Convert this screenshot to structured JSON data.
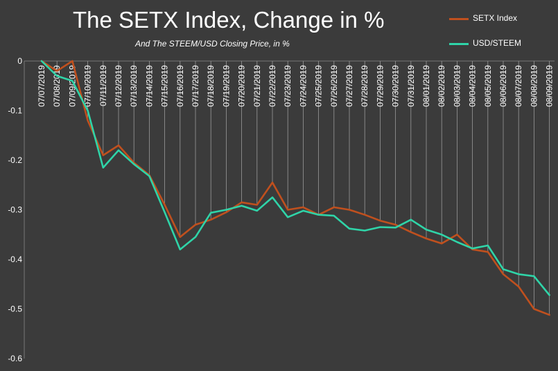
{
  "chart_data": {
    "type": "line",
    "title": "The SETX Index, Change in %",
    "subtitle": "And The STEEM/USD Closing Price, in %",
    "xlabel": "",
    "ylabel": "",
    "ylim": [
      -0.6,
      0
    ],
    "yticks": [
      "0",
      "-0.1",
      "-0.2",
      "-0.3",
      "-0.4",
      "-0.5",
      "-0.6"
    ],
    "grid": "vertical drop lines",
    "legend_position": "top-right",
    "categories": [
      "07/07/2019",
      "07/08/2019",
      "07/09/2019",
      "07/10/2019",
      "07/11/2019",
      "07/12/2019",
      "07/13/2019",
      "07/14/2019",
      "07/15/2019",
      "07/16/2019",
      "07/17/2019",
      "07/18/2019",
      "07/19/2019",
      "07/20/2019",
      "07/21/2019",
      "07/22/2019",
      "07/23/2019",
      "07/24/2019",
      "07/25/2019",
      "07/26/2019",
      "07/27/2019",
      "07/28/2019",
      "07/29/2019",
      "07/30/2019",
      "07/31/2019",
      "08/01/2019",
      "08/02/2019",
      "08/03/2019",
      "08/04/2019",
      "08/05/2019",
      "08/06/2019",
      "08/07/2019",
      "08/08/2019",
      "08/09/2019"
    ],
    "series": [
      {
        "name": "SETX Index",
        "color": "#c0501e",
        "values": [
          0,
          -0.02,
          0,
          -0.12,
          -0.19,
          -0.17,
          -0.205,
          -0.23,
          -0.29,
          -0.355,
          -0.33,
          -0.32,
          -0.305,
          -0.285,
          -0.29,
          -0.245,
          -0.3,
          -0.295,
          -0.31,
          -0.295,
          -0.3,
          -0.31,
          -0.322,
          -0.33,
          -0.345,
          -0.358,
          -0.368,
          -0.35,
          -0.38,
          -0.385,
          -0.43,
          -0.455,
          -0.5,
          -0.512
        ]
      },
      {
        "name": "USD/STEEM",
        "color": "#2fd4a8",
        "values": [
          0,
          -0.03,
          -0.04,
          -0.1,
          -0.215,
          -0.18,
          -0.208,
          -0.232,
          -0.305,
          -0.38,
          -0.355,
          -0.306,
          -0.3,
          -0.292,
          -0.302,
          -0.275,
          -0.315,
          -0.302,
          -0.31,
          -0.312,
          -0.338,
          -0.342,
          -0.335,
          -0.336,
          -0.32,
          -0.34,
          -0.35,
          -0.365,
          -0.378,
          -0.372,
          -0.42,
          -0.43,
          -0.434,
          -0.472
        ]
      }
    ]
  }
}
